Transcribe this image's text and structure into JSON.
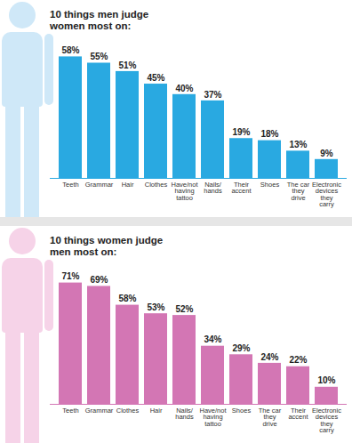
{
  "chart_data": [
    {
      "type": "bar",
      "title": "10 things men judge women most on:",
      "categories": [
        "Teeth",
        "Grammar",
        "Hair",
        "Clothes",
        "Have/not having tattoo",
        "Nails/ hands",
        "Their accent",
        "Shoes",
        "The car they drive",
        "Electronic devices they carry"
      ],
      "values": [
        58,
        55,
        51,
        45,
        40,
        37,
        19,
        18,
        13,
        9
      ],
      "value_labels": [
        "58%",
        "55%",
        "51%",
        "45%",
        "40%",
        "37%",
        "19%",
        "18%",
        "13%",
        "9%"
      ],
      "color": "#29a9e1",
      "ylim": [
        0,
        62
      ],
      "data_labels": true,
      "tick_labels": "x"
    },
    {
      "type": "bar",
      "title": "10 things women judge men most on:",
      "categories": [
        "Teeth",
        "Grammar",
        "Clothes",
        "Hair",
        "Nails/ hands",
        "Have/not having tattoo",
        "Shoes",
        "The car they drive",
        "Their accent",
        "Electronic devices they carry"
      ],
      "values": [
        71,
        69,
        58,
        53,
        52,
        34,
        29,
        24,
        22,
        10
      ],
      "value_labels": [
        "71%",
        "69%",
        "58%",
        "53%",
        "52%",
        "34%",
        "29%",
        "24%",
        "22%",
        "10%"
      ],
      "color": "#d376b4",
      "ylim": [
        0,
        76
      ],
      "data_labels": true,
      "tick_labels": "x"
    }
  ]
}
